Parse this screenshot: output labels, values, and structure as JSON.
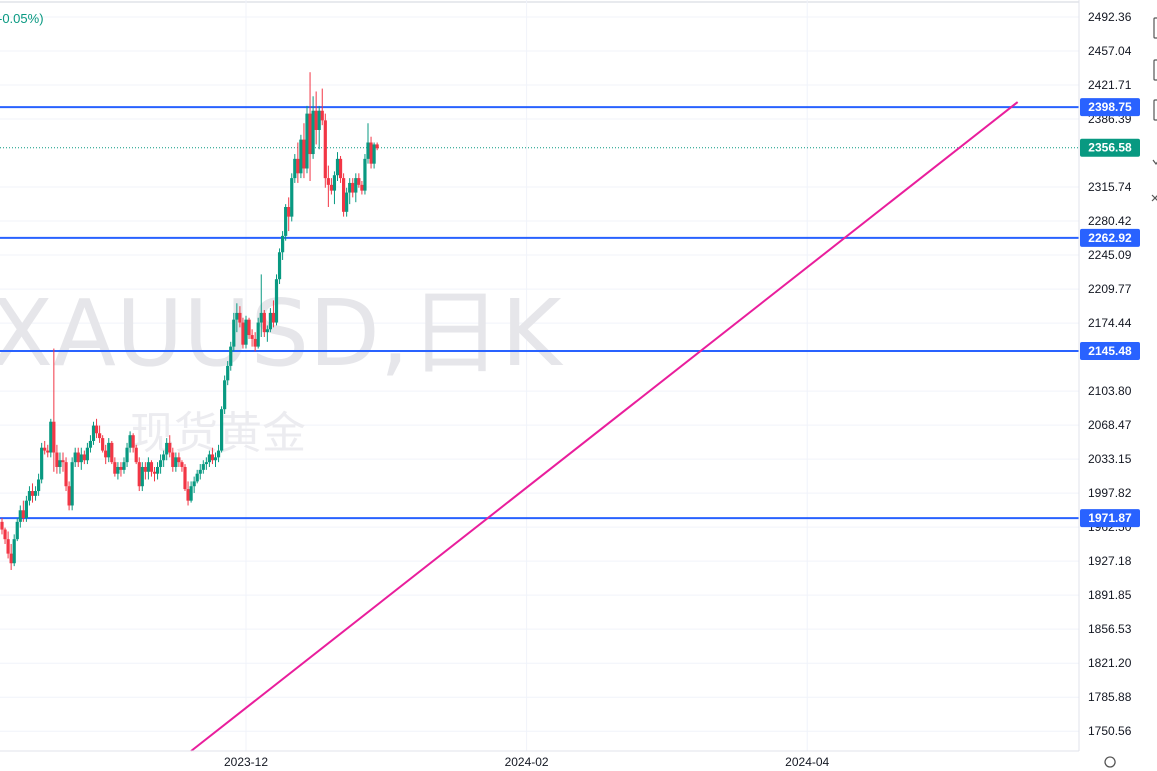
{
  "chart_data": {
    "type": "candlestick",
    "header": {
      "change_text": "-0.05%)"
    },
    "watermark": {
      "symbol": "XAUUSD,日K",
      "subtitle": "现货黄金"
    },
    "ylim": [
      1730,
      2510
    ],
    "y_ticks": [
      "2492.36",
      "2457.04",
      "2421.71",
      "2386.39",
      "2315.74",
      "2280.42",
      "2245.09",
      "2209.77",
      "2174.44",
      "2103.80",
      "2068.47",
      "2033.15",
      "1997.82",
      "1962.50",
      "1927.18",
      "1891.85",
      "1856.53",
      "1821.20",
      "1785.88",
      "1750.56"
    ],
    "x_ticks": [
      {
        "label": "2023-12",
        "index": 80
      },
      {
        "label": "2024-02",
        "index": 172
      },
      {
        "label": "2024-04",
        "index": 264
      }
    ],
    "horizontal_levels": [
      {
        "value": 2398.75,
        "label": "2398.75"
      },
      {
        "value": 2262.92,
        "label": "2262.92"
      },
      {
        "value": 2145.48,
        "label": "2145.48"
      },
      {
        "value": 1971.87,
        "label": "1971.87"
      }
    ],
    "current_price": {
      "value": 2356.58,
      "label": "2356.58"
    },
    "trendline": {
      "from": {
        "index": 62,
        "value": 1730
      },
      "to": {
        "index": 333,
        "value": 2404
      }
    },
    "candles": [
      [
        1968,
        1972,
        1955,
        1960
      ],
      [
        1960,
        1962,
        1945,
        1950
      ],
      [
        1950,
        1958,
        1930,
        1935
      ],
      [
        1935,
        1945,
        1918,
        1925
      ],
      [
        1925,
        1955,
        1922,
        1950
      ],
      [
        1950,
        1972,
        1948,
        1968
      ],
      [
        1968,
        1985,
        1962,
        1980
      ],
      [
        1980,
        1990,
        1968,
        1972
      ],
      [
        1972,
        1995,
        1968,
        1990
      ],
      [
        1990,
        2005,
        1985,
        2000
      ],
      [
        2000,
        2008,
        1988,
        1995
      ],
      [
        1995,
        2005,
        1990,
        2000
      ],
      [
        2000,
        2018,
        1995,
        2012
      ],
      [
        2012,
        2050,
        2008,
        2045
      ],
      [
        2045,
        2052,
        2038,
        2042
      ],
      [
        2042,
        2048,
        2035,
        2040
      ],
      [
        2040,
        2075,
        2035,
        2072
      ],
      [
        2072,
        2148,
        2020,
        2040
      ],
      [
        2040,
        2048,
        2018,
        2025
      ],
      [
        2025,
        2040,
        2018,
        2032
      ],
      [
        2032,
        2040,
        2020,
        2030
      ],
      [
        2030,
        2035,
        2000,
        2005
      ],
      [
        2005,
        2010,
        1980,
        1985
      ],
      [
        1985,
        2035,
        1980,
        2030
      ],
      [
        2030,
        2045,
        2025,
        2040
      ],
      [
        2040,
        2045,
        2025,
        2030
      ],
      [
        2030,
        2045,
        2022,
        2038
      ],
      [
        2038,
        2042,
        2028,
        2032
      ],
      [
        2032,
        2050,
        2028,
        2045
      ],
      [
        2045,
        2058,
        2040,
        2052
      ],
      [
        2052,
        2072,
        2048,
        2068
      ],
      [
        2068,
        2075,
        2055,
        2060
      ],
      [
        2060,
        2068,
        2050,
        2055
      ],
      [
        2055,
        2058,
        2040,
        2042
      ],
      [
        2042,
        2048,
        2028,
        2035
      ],
      [
        2035,
        2055,
        2030,
        2050
      ],
      [
        2050,
        2052,
        2028,
        2030
      ],
      [
        2030,
        2035,
        2015,
        2018
      ],
      [
        2018,
        2030,
        2012,
        2025
      ],
      [
        2025,
        2030,
        2015,
        2022
      ],
      [
        2022,
        2035,
        2018,
        2030
      ],
      [
        2030,
        2050,
        2025,
        2045
      ],
      [
        2045,
        2062,
        2040,
        2058
      ],
      [
        2058,
        2060,
        2040,
        2045
      ],
      [
        2045,
        2048,
        2028,
        2030
      ],
      [
        2030,
        2035,
        2000,
        2005
      ],
      [
        2005,
        2030,
        2000,
        2025
      ],
      [
        2025,
        2030,
        2012,
        2020
      ],
      [
        2020,
        2035,
        2012,
        2030
      ],
      [
        2030,
        2032,
        2015,
        2020
      ],
      [
        2020,
        2025,
        2010,
        2018
      ],
      [
        2018,
        2030,
        2012,
        2025
      ],
      [
        2025,
        2038,
        2018,
        2032
      ],
      [
        2032,
        2042,
        2025,
        2038
      ],
      [
        2038,
        2055,
        2032,
        2050
      ],
      [
        2050,
        2058,
        2035,
        2040
      ],
      [
        2040,
        2045,
        2020,
        2025
      ],
      [
        2025,
        2040,
        2020,
        2035
      ],
      [
        2035,
        2040,
        2025,
        2030
      ],
      [
        2030,
        2032,
        2020,
        2025
      ],
      [
        2025,
        2028,
        2000,
        2002
      ],
      [
        2002,
        2010,
        1985,
        1990
      ],
      [
        1990,
        2010,
        1988,
        2005
      ],
      [
        2005,
        2015,
        1998,
        2010
      ],
      [
        2010,
        2022,
        2008,
        2018
      ],
      [
        2018,
        2028,
        2012,
        2022
      ],
      [
        2022,
        2032,
        2018,
        2028
      ],
      [
        2028,
        2035,
        2022,
        2030
      ],
      [
        2030,
        2042,
        2025,
        2038
      ],
      [
        2038,
        2045,
        2028,
        2032
      ],
      [
        2032,
        2040,
        2025,
        2035
      ],
      [
        2035,
        2048,
        2030,
        2042
      ],
      [
        2042,
        2088,
        2040,
        2085
      ],
      [
        2085,
        2120,
        2080,
        2115
      ],
      [
        2115,
        2135,
        2110,
        2130
      ],
      [
        2130,
        2155,
        2125,
        2150
      ],
      [
        2150,
        2185,
        2145,
        2178
      ],
      [
        2178,
        2195,
        2165,
        2185
      ],
      [
        2185,
        2192,
        2170,
        2175
      ],
      [
        2175,
        2180,
        2148,
        2152
      ],
      [
        2152,
        2182,
        2148,
        2178
      ],
      [
        2178,
        2180,
        2158,
        2162
      ],
      [
        2162,
        2168,
        2150,
        2158
      ],
      [
        2158,
        2165,
        2145,
        2150
      ],
      [
        2150,
        2180,
        2148,
        2175
      ],
      [
        2175,
        2225,
        2160,
        2185
      ],
      [
        2185,
        2188,
        2160,
        2165
      ],
      [
        2165,
        2172,
        2155,
        2168
      ],
      [
        2168,
        2190,
        2165,
        2185
      ],
      [
        2185,
        2198,
        2170,
        2175
      ],
      [
        2175,
        2225,
        2172,
        2220
      ],
      [
        2220,
        2252,
        2215,
        2248
      ],
      [
        2248,
        2270,
        2240,
        2265
      ],
      [
        2265,
        2298,
        2260,
        2295
      ],
      [
        2295,
        2305,
        2270,
        2285
      ],
      [
        2285,
        2330,
        2280,
        2325
      ],
      [
        2325,
        2350,
        2320,
        2345
      ],
      [
        2345,
        2362,
        2320,
        2330
      ],
      [
        2330,
        2370,
        2325,
        2365
      ],
      [
        2365,
        2382,
        2325,
        2335
      ],
      [
        2335,
        2400,
        2330,
        2392
      ],
      [
        2392,
        2435,
        2322,
        2350
      ],
      [
        2350,
        2410,
        2345,
        2395
      ],
      [
        2395,
        2415,
        2360,
        2375
      ],
      [
        2375,
        2400,
        2355,
        2395
      ],
      [
        2395,
        2418,
        2380,
        2385
      ],
      [
        2385,
        2392,
        2315,
        2325
      ],
      [
        2325,
        2338,
        2295,
        2318
      ],
      [
        2318,
        2325,
        2308,
        2312
      ],
      [
        2312,
        2332,
        2298,
        2328
      ],
      [
        2328,
        2352,
        2322,
        2345
      ],
      [
        2345,
        2348,
        2320,
        2325
      ],
      [
        2325,
        2330,
        2285,
        2290
      ],
      [
        2290,
        2315,
        2285,
        2310
      ],
      [
        2310,
        2325,
        2298,
        2320
      ],
      [
        2320,
        2325,
        2305,
        2310
      ],
      [
        2310,
        2330,
        2300,
        2325
      ],
      [
        2325,
        2330,
        2315,
        2318
      ],
      [
        2318,
        2322,
        2308,
        2312
      ],
      [
        2312,
        2350,
        2308,
        2345
      ],
      [
        2345,
        2382,
        2340,
        2362
      ],
      [
        2362,
        2368,
        2335,
        2340
      ],
      [
        2340,
        2362,
        2335,
        2360
      ],
      [
        2360,
        2362,
        2354,
        2356
      ]
    ]
  }
}
